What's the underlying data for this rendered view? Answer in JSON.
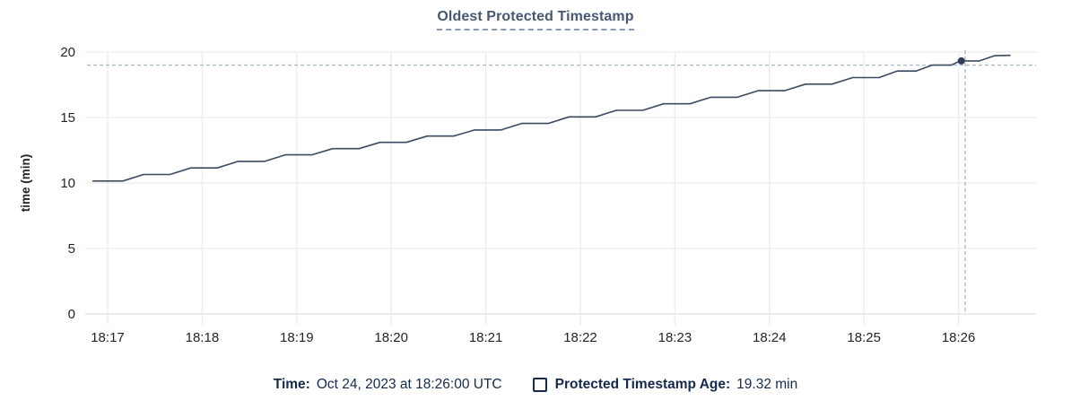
{
  "chart_data": {
    "type": "line",
    "title": "Oldest Protected Timestamp",
    "xlabel": "",
    "ylabel": "time (min)",
    "ylim": [
      0,
      20
    ],
    "y_ticks": [
      0,
      5,
      10,
      15,
      20
    ],
    "x_ticks": [
      "18:17",
      "18:18",
      "18:19",
      "18:20",
      "18:21",
      "18:22",
      "18:23",
      "18:24",
      "18:25",
      "18:26"
    ],
    "x_unit": "minutes after 18:17",
    "grid": true,
    "legend_position": "bottom",
    "series": [
      {
        "name": "Protected Timestamp Age",
        "points": [
          [
            -0.16,
            10.15
          ],
          [
            0.16,
            10.15
          ],
          [
            0.38,
            10.65
          ],
          [
            0.66,
            10.65
          ],
          [
            0.88,
            11.15
          ],
          [
            1.16,
            11.15
          ],
          [
            1.38,
            11.65
          ],
          [
            1.66,
            11.65
          ],
          [
            1.88,
            12.15
          ],
          [
            2.16,
            12.15
          ],
          [
            2.38,
            12.62
          ],
          [
            2.66,
            12.62
          ],
          [
            2.88,
            13.1
          ],
          [
            3.16,
            13.1
          ],
          [
            3.38,
            13.58
          ],
          [
            3.66,
            13.58
          ],
          [
            3.88,
            14.05
          ],
          [
            4.16,
            14.05
          ],
          [
            4.38,
            14.55
          ],
          [
            4.66,
            14.55
          ],
          [
            4.88,
            15.05
          ],
          [
            5.16,
            15.05
          ],
          [
            5.38,
            15.55
          ],
          [
            5.66,
            15.55
          ],
          [
            5.88,
            16.05
          ],
          [
            6.16,
            16.05
          ],
          [
            6.38,
            16.55
          ],
          [
            6.66,
            16.55
          ],
          [
            6.88,
            17.05
          ],
          [
            7.16,
            17.05
          ],
          [
            7.38,
            17.55
          ],
          [
            7.66,
            17.55
          ],
          [
            7.88,
            18.05
          ],
          [
            8.16,
            18.05
          ],
          [
            8.35,
            18.55
          ],
          [
            8.55,
            18.55
          ],
          [
            8.72,
            19.0
          ],
          [
            8.92,
            19.0
          ],
          [
            9.02,
            19.32
          ],
          [
            9.22,
            19.32
          ],
          [
            9.38,
            19.72
          ],
          [
            9.55,
            19.75
          ]
        ]
      }
    ],
    "hover_point": {
      "time": "18:26:00",
      "x": 9.03,
      "value_min": 19.32
    },
    "crosshair": {
      "x": 9.07,
      "y_value": 19.0
    }
  },
  "legend": {
    "time_label": "Time:",
    "time_value": "Oct 24, 2023 at 18:26:00 UTC",
    "series_label": "Protected Timestamp Age:",
    "series_value": "19.32 min"
  },
  "colors": {
    "title": "#475872",
    "line": "#3b4a60",
    "dot": "#2e3c54",
    "crosshair": "#a9b8c7",
    "grid": "#ececec",
    "baseline": "#e0e0e0",
    "tick_text": "#242424",
    "legend_text": "#152a4d"
  }
}
